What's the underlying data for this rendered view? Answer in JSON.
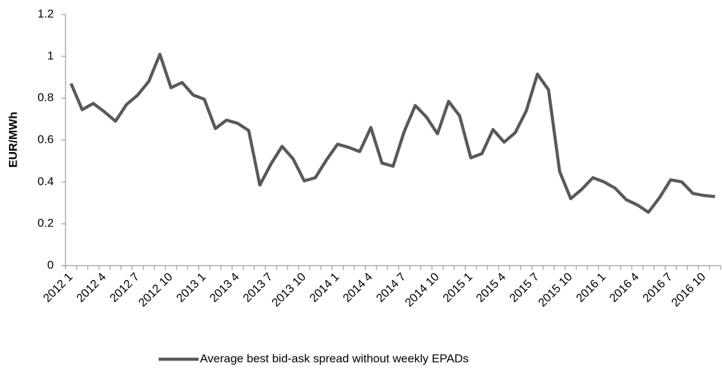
{
  "chart_data": {
    "type": "line",
    "y_label": "EUR/MWh",
    "categories": [
      "2012 1",
      null,
      null,
      "2012 4",
      null,
      null,
      "2012 7",
      null,
      null,
      "2012 10",
      null,
      null,
      "2013 1",
      null,
      null,
      "2013 4",
      null,
      null,
      "2013 7",
      null,
      null,
      "2013 10",
      null,
      null,
      "2014 1",
      null,
      null,
      "2014 4",
      null,
      null,
      "2014 7",
      null,
      null,
      "2014 10",
      null,
      null,
      "2015 1",
      null,
      null,
      "2015 4",
      null,
      null,
      "2015 7",
      null,
      null,
      "2015 10",
      null,
      null,
      "2016 1",
      null,
      null,
      "2016 4",
      null,
      null,
      "2016 7",
      null,
      null,
      "2016 10",
      null
    ],
    "series": [
      {
        "name": "Average best bid-ask spread without weekly EPADs",
        "color": "#595959",
        "values": [
          0.87,
          0.745,
          0.775,
          0.735,
          0.69,
          0.77,
          0.815,
          0.88,
          1.01,
          0.85,
          0.875,
          0.815,
          0.795,
          0.655,
          0.695,
          0.68,
          0.645,
          0.385,
          0.485,
          0.57,
          0.51,
          0.405,
          0.42,
          0.505,
          0.58,
          0.565,
          0.545,
          0.66,
          0.49,
          0.475,
          0.64,
          0.765,
          0.71,
          0.63,
          0.785,
          0.715,
          0.515,
          0.535,
          0.65,
          0.59,
          0.635,
          0.74,
          0.915,
          0.84,
          0.45,
          0.32,
          0.365,
          0.42,
          0.4,
          0.37,
          0.315,
          0.29,
          0.255,
          0.325,
          0.41,
          0.4,
          0.345,
          0.335,
          0.33
        ]
      }
    ],
    "ylim": [
      0,
      1.2
    ],
    "yticks": [
      0,
      0.2,
      0.4,
      0.6,
      0.8,
      1,
      1.2
    ],
    "grid": false,
    "legend": "bottom"
  }
}
